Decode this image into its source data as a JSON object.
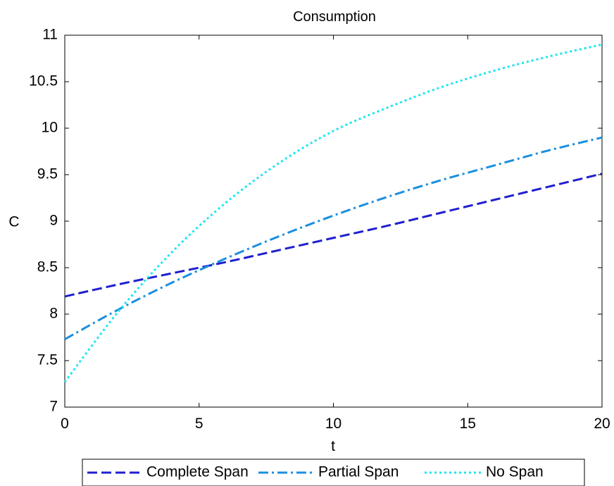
{
  "chart_data": {
    "type": "line",
    "title": "Consumption",
    "xlabel": "t",
    "ylabel": "C",
    "xlim": [
      0,
      20
    ],
    "ylim": [
      7,
      11
    ],
    "xticks": [
      0,
      5,
      10,
      15,
      20
    ],
    "xtick_labels": [
      "0",
      "5",
      "10",
      "15",
      "20"
    ],
    "yticks": [
      7,
      7.5,
      8,
      8.5,
      9,
      9.5,
      10,
      10.5,
      11
    ],
    "ytick_labels": [
      "7",
      "7.5",
      "8",
      "8.5",
      "9",
      "9.5",
      "10",
      "10.5",
      "11"
    ],
    "grid": false,
    "legend_position": "bottom, outside plot, horizontal",
    "series": [
      {
        "name": "Complete Span",
        "color": "#1f1fd0",
        "dash": "dashed",
        "x": [
          0,
          2,
          4,
          6,
          8,
          10,
          12,
          14,
          16,
          18,
          20
        ],
        "y": [
          8.19,
          8.32,
          8.44,
          8.56,
          8.69,
          8.82,
          8.95,
          9.09,
          9.23,
          9.37,
          9.51
        ]
      },
      {
        "name": "Partial Span",
        "color": "#1a8fe0",
        "dash": "dashdot",
        "x": [
          0,
          2,
          4,
          6,
          8,
          10,
          12,
          14,
          16,
          18,
          20
        ],
        "y": [
          7.73,
          8.05,
          8.34,
          8.6,
          8.84,
          9.06,
          9.26,
          9.44,
          9.6,
          9.76,
          9.9
        ]
      },
      {
        "name": "No Span",
        "color": "#1ae6f0",
        "dash": "dotted",
        "x": [
          0,
          2,
          4,
          6,
          8,
          10,
          12,
          14,
          16,
          18,
          20
        ],
        "y": [
          7.27,
          8.03,
          8.67,
          9.2,
          9.63,
          9.97,
          10.22,
          10.44,
          10.62,
          10.77,
          10.9
        ]
      }
    ]
  }
}
